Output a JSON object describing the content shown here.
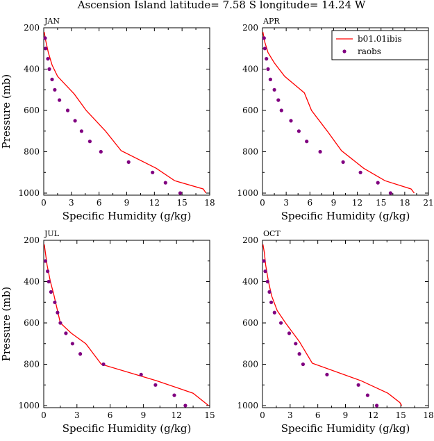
{
  "title": "Ascension Island  latitude= 7.58 S longitude= 14.24 W",
  "colors": {
    "model": "#ff0000",
    "obs": "#800080",
    "axis": "#000000"
  },
  "legend": {
    "placement": "top-right",
    "model_label": "b01.01ibis",
    "obs_label": "raobs"
  },
  "chart_data": [
    {
      "type": "line",
      "panel": "JAN",
      "xlabel": "Specific Humidity (g/kg)",
      "ylabel": "Pressure (mb)",
      "xlim": [
        0,
        18
      ],
      "ylim": [
        1010,
        200
      ],
      "y_reversed": true,
      "xticks": [
        0,
        3,
        6,
        9,
        12,
        15,
        18
      ],
      "yticks": [
        200,
        400,
        600,
        800,
        1000
      ],
      "series": [
        {
          "name": "b01.01ibis",
          "kind": "line",
          "points": [
            [
              0.05,
              220
            ],
            [
              0.2,
              260
            ],
            [
              0.5,
              320
            ],
            [
              0.9,
              380
            ],
            [
              1.5,
              435
            ],
            [
              3.3,
              520
            ],
            [
              4.6,
              600
            ],
            [
              6.7,
              700
            ],
            [
              8.4,
              795
            ],
            [
              12.2,
              880
            ],
            [
              14.2,
              940
            ],
            [
              17.3,
              980
            ],
            [
              17.6,
              1000
            ]
          ]
        },
        {
          "name": "raobs",
          "kind": "scatter",
          "points": [
            [
              0.15,
              250
            ],
            [
              0.2,
              300
            ],
            [
              0.45,
              350
            ],
            [
              0.6,
              400
            ],
            [
              0.9,
              450
            ],
            [
              1.2,
              500
            ],
            [
              1.7,
              550
            ],
            [
              2.6,
              600
            ],
            [
              3.4,
              650
            ],
            [
              4.1,
              700
            ],
            [
              5.0,
              750
            ],
            [
              6.2,
              800
            ],
            [
              9.2,
              850
            ],
            [
              11.8,
              900
            ],
            [
              13.2,
              950
            ],
            [
              14.8,
              1000
            ]
          ]
        }
      ]
    },
    {
      "type": "line",
      "panel": "APR",
      "xlabel": "Specific Humidity (g/kg)",
      "ylabel": "",
      "xlim": [
        0,
        21
      ],
      "ylim": [
        1010,
        200
      ],
      "y_reversed": true,
      "xticks": [
        0,
        3,
        6,
        9,
        12,
        15,
        18,
        21
      ],
      "yticks": [
        200,
        400,
        600,
        800,
        1000
      ],
      "series": [
        {
          "name": "b01.01ibis",
          "kind": "line",
          "points": [
            [
              0.05,
              220
            ],
            [
              0.3,
              270
            ],
            [
              0.7,
              320
            ],
            [
              1.5,
              370
            ],
            [
              2.8,
              435
            ],
            [
              5.3,
              515
            ],
            [
              6.2,
              600
            ],
            [
              8.2,
              700
            ],
            [
              10.0,
              795
            ],
            [
              12.8,
              880
            ],
            [
              15.5,
              940
            ],
            [
              18.8,
              980
            ],
            [
              19.2,
              1000
            ]
          ]
        },
        {
          "name": "raobs",
          "kind": "scatter",
          "points": [
            [
              0.2,
              250
            ],
            [
              0.3,
              300
            ],
            [
              0.5,
              350
            ],
            [
              0.7,
              400
            ],
            [
              1.0,
              450
            ],
            [
              1.5,
              500
            ],
            [
              2.0,
              550
            ],
            [
              2.4,
              600
            ],
            [
              3.6,
              650
            ],
            [
              4.6,
              700
            ],
            [
              5.6,
              750
            ],
            [
              7.3,
              800
            ],
            [
              10.2,
              850
            ],
            [
              12.4,
              900
            ],
            [
              14.6,
              950
            ],
            [
              16.2,
              1000
            ]
          ]
        }
      ]
    },
    {
      "type": "line",
      "panel": "JUL",
      "xlabel": "Specific Humidity (g/kg)",
      "ylabel": "Pressure (mb)",
      "xlim": [
        0,
        15
      ],
      "ylim": [
        1010,
        200
      ],
      "y_reversed": true,
      "xticks": [
        0,
        3,
        6,
        9,
        12,
        15
      ],
      "yticks": [
        200,
        400,
        600,
        800,
        1000
      ],
      "series": [
        {
          "name": "b01.01ibis",
          "kind": "line",
          "points": [
            [
              0.05,
              220
            ],
            [
              0.15,
              260
            ],
            [
              0.3,
              320
            ],
            [
              0.6,
              400
            ],
            [
              0.9,
              460
            ],
            [
              1.2,
              530
            ],
            [
              1.5,
              600
            ],
            [
              2.5,
              650
            ],
            [
              3.8,
              700
            ],
            [
              5.2,
              800
            ],
            [
              10.2,
              880
            ],
            [
              13.5,
              940
            ],
            [
              14.9,
              1000
            ]
          ]
        },
        {
          "name": "raobs",
          "kind": "scatter",
          "points": [
            [
              0.15,
              300
            ],
            [
              0.35,
              350
            ],
            [
              0.45,
              400
            ],
            [
              0.65,
              450
            ],
            [
              1.0,
              500
            ],
            [
              1.25,
              550
            ],
            [
              1.5,
              600
            ],
            [
              2.0,
              650
            ],
            [
              2.6,
              700
            ],
            [
              3.3,
              750
            ],
            [
              5.4,
              800
            ],
            [
              8.8,
              850
            ],
            [
              10.1,
              900
            ],
            [
              11.8,
              950
            ],
            [
              12.8,
              1000
            ]
          ]
        }
      ]
    },
    {
      "type": "line",
      "panel": "OCT",
      "xlabel": "Specific Humidity (g/kg)",
      "ylabel": "",
      "xlim": [
        0,
        18
      ],
      "ylim": [
        1010,
        200
      ],
      "y_reversed": true,
      "xticks": [
        0,
        3,
        6,
        9,
        12,
        15,
        18
      ],
      "yticks": [
        200,
        400,
        600,
        800,
        1000
      ],
      "series": [
        {
          "name": "b01.01ibis",
          "kind": "line",
          "points": [
            [
              0.05,
              220
            ],
            [
              0.2,
              260
            ],
            [
              0.35,
              320
            ],
            [
              0.65,
              400
            ],
            [
              1.0,
              470
            ],
            [
              1.6,
              540
            ],
            [
              2.5,
              600
            ],
            [
              4.0,
              690
            ],
            [
              5.4,
              795
            ],
            [
              10.7,
              880
            ],
            [
              13.6,
              940
            ],
            [
              14.9,
              985
            ],
            [
              15.1,
              1000
            ]
          ]
        },
        {
          "name": "raobs",
          "kind": "scatter",
          "points": [
            [
              0.15,
              300
            ],
            [
              0.3,
              350
            ],
            [
              0.55,
              400
            ],
            [
              0.75,
              450
            ],
            [
              0.95,
              500
            ],
            [
              1.3,
              550
            ],
            [
              2.0,
              600
            ],
            [
              2.9,
              650
            ],
            [
              3.6,
              700
            ],
            [
              4.0,
              750
            ],
            [
              4.4,
              800
            ],
            [
              7.0,
              850
            ],
            [
              10.4,
              900
            ],
            [
              11.4,
              950
            ],
            [
              12.4,
              1000
            ]
          ]
        }
      ]
    }
  ]
}
